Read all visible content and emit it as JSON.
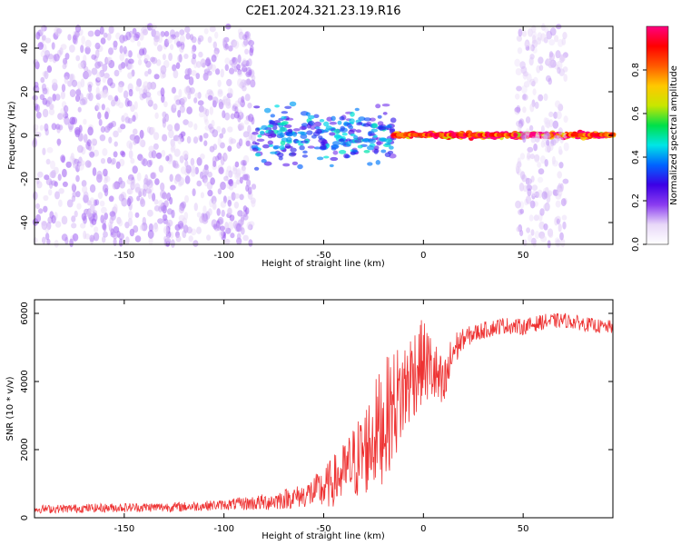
{
  "figure_title": "C2E1.2024.321.23.19.R16",
  "colors": {
    "snr_line": "#ee3333",
    "axis": "#000000",
    "colormap": [
      "#ffffff",
      "#e8d8f8",
      "#8a3cf0",
      "#3c00e6",
      "#0064ff",
      "#00e6e6",
      "#00e04a",
      "#c8e600",
      "#ffc800",
      "#ff5a00",
      "#ff0000",
      "#ff0080"
    ]
  },
  "chart_data": [
    {
      "type": "heatmap",
      "xlabel": "Height of straight line (km)",
      "ylabel": "Frequency (Hz)",
      "xlim": [
        -195,
        95
      ],
      "ylim": [
        -50,
        50
      ],
      "xticks": [
        -150,
        -100,
        -50,
        0,
        50
      ],
      "yticks": [
        -40,
        -20,
        0,
        20,
        40
      ],
      "grid": false,
      "colorbar": {
        "label": "Normalized spectral amplitude",
        "range": [
          0,
          1
        ],
        "ticks": [
          0.0,
          0.2,
          0.4,
          0.6,
          0.8
        ]
      },
      "bands": [
        {
          "x0": -195,
          "x1": -85,
          "halfwidth_hz": 50,
          "amplitude": 0.12
        },
        {
          "x0": -85,
          "x1": -15,
          "halfwidth_hz": 18,
          "amplitude": 0.35
        },
        {
          "x0": -15,
          "x1": 95,
          "halfwidth_hz": 1.5,
          "amplitude": 0.95
        },
        {
          "x0": 47,
          "x1": 72,
          "halfwidth_hz": 50,
          "amplitude": 0.1
        }
      ]
    },
    {
      "type": "line",
      "xlabel": "Height of straight line (km)",
      "ylabel": "SNR (10 * v/v)",
      "xlim": [
        -195,
        95
      ],
      "ylim": [
        0,
        6400
      ],
      "xticks": [
        -150,
        -100,
        -50,
        0,
        50
      ],
      "yticks": [
        0,
        2000,
        4000,
        6000
      ],
      "grid": false,
      "series": [
        {
          "envelope_x": [
            -195,
            -150,
            -120,
            -100,
            -80,
            -60,
            -50,
            -40,
            -30,
            -25,
            -20,
            -15,
            -10,
            -5,
            0,
            5,
            10,
            15,
            20,
            25,
            30,
            40,
            50,
            60,
            70,
            80,
            90,
            95
          ],
          "envelope_y": [
            250,
            300,
            320,
            380,
            450,
            650,
            850,
            1300,
            1900,
            2400,
            2800,
            3300,
            3700,
            4300,
            4600,
            4300,
            3700,
            4900,
            5250,
            5400,
            5500,
            5650,
            5600,
            5750,
            5800,
            5700,
            5600,
            5600
          ],
          "noise_amplitude_x": [
            -195,
            -100,
            -60,
            -40,
            -20,
            -5,
            10,
            20,
            30,
            95
          ],
          "noise_amplitude_y": [
            120,
            150,
            350,
            900,
            1800,
            1400,
            900,
            300,
            250,
            200
          ]
        }
      ]
    }
  ]
}
